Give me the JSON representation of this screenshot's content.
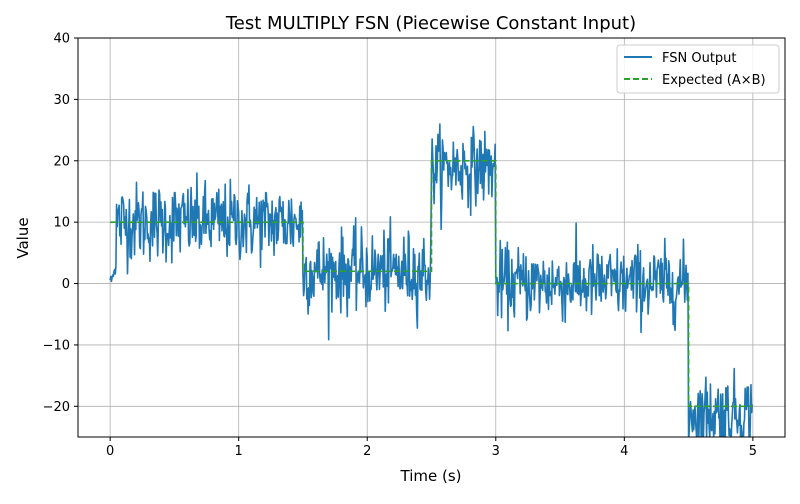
{
  "chart_data": {
    "type": "line",
    "title": "Test MULTIPLY FSN (Piecewise Constant Input)",
    "xlabel": "Time (s)",
    "ylabel": "Value",
    "xlim": [
      -0.25,
      5.25
    ],
    "ylim": [
      -25,
      40
    ],
    "x_ticks": [
      0,
      1,
      2,
      3,
      4,
      5
    ],
    "x_tick_labels": [
      "0",
      "1",
      "2",
      "3",
      "4",
      "5"
    ],
    "y_ticks": [
      -20,
      -10,
      0,
      10,
      20,
      30,
      40
    ],
    "y_tick_labels": [
      "−20",
      "−10",
      "0",
      "10",
      "20",
      "30",
      "40"
    ],
    "grid": true,
    "legend_position": "top-right",
    "series": [
      {
        "name": "FSN Output",
        "color": "#1f77b4",
        "style": "solid",
        "segments": [
          {
            "x0": 0.0,
            "x1": 0.05,
            "level": 0,
            "noise": 1.5
          },
          {
            "x0": 0.05,
            "x1": 1.5,
            "level": 10,
            "noise": 3.2
          },
          {
            "x0": 1.5,
            "x1": 2.5,
            "level": 2,
            "noise": 3.2
          },
          {
            "x0": 2.5,
            "x1": 3.0,
            "level": 19,
            "noise": 3.0
          },
          {
            "x0": 3.0,
            "x1": 4.5,
            "level": 0,
            "noise": 3.0
          },
          {
            "x0": 4.5,
            "x1": 5.0,
            "level": -21,
            "noise": 3.0
          }
        ]
      },
      {
        "name": "Expected (A×B)",
        "color": "#2ca02c",
        "style": "dashed",
        "x": [
          0,
          1.5,
          1.5,
          2.5,
          2.5,
          3.0,
          3.0,
          4.5,
          4.5,
          5.0
        ],
        "y": [
          10,
          10,
          2,
          2,
          20,
          20,
          0,
          0,
          -20,
          -20
        ]
      }
    ]
  }
}
